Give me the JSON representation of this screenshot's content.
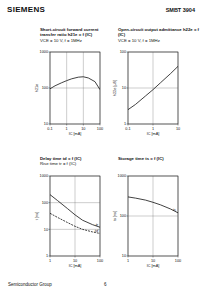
{
  "page": {
    "brand": "SIEMENS",
    "part": "SMBT 3904",
    "footer": "Semiconductor Group",
    "page_number": "6"
  },
  "chart_data": [
    {
      "type": "line",
      "log": true,
      "grid": true,
      "title": "Short-circuit forward current transfer ratio h21e = f (IC)",
      "subtitle": "VCE = 10 V, f = 1MHz",
      "x_label": "IC [mA]",
      "y_label": "h21e",
      "x": [
        0.1,
        0.2,
        0.5,
        1,
        2,
        5,
        10,
        20,
        50,
        100
      ],
      "xlim": [
        0.1,
        100
      ],
      "ylim": [
        10,
        1000
      ],
      "xticks": [
        0.1,
        1,
        10,
        100
      ],
      "yticks": [
        10,
        100,
        1000
      ],
      "series": [
        {
          "color": "#111111",
          "values": [
            95,
            115,
            140,
            160,
            180,
            200,
            205,
            190,
            150,
            90
          ]
        }
      ]
    },
    {
      "type": "line",
      "log": true,
      "grid": true,
      "title": "Open-circuit output admittance h22e = f (IC)",
      "subtitle": "VCE = 10 V, f = 1MHz",
      "x_label": "IC [mA]",
      "y_label": "h22e [µS]",
      "x": [
        0.1,
        0.2,
        0.5,
        1,
        2,
        5,
        10
      ],
      "xlim": [
        0.1,
        10
      ],
      "ylim": [
        1,
        100
      ],
      "xticks": [
        0.1,
        1,
        10
      ],
      "yticks": [
        1,
        10,
        100
      ],
      "series": [
        {
          "color": "#111111",
          "values": [
            2.5,
            3.5,
            6,
            9,
            14,
            25,
            40
          ]
        }
      ]
    },
    {
      "type": "line",
      "log": true,
      "grid": true,
      "title": "Delay time td = f (IC)",
      "subtitle": "Rise time tr = f (IC)",
      "x_label": "IC [mA]",
      "y_label": "t [ns]",
      "x": [
        1,
        2,
        5,
        10,
        20,
        50,
        100
      ],
      "xlim": [
        1,
        100
      ],
      "ylim": [
        1,
        1000
      ],
      "xticks": [
        1,
        10,
        100
      ],
      "yticks": [
        1,
        10,
        100,
        1000
      ],
      "series": [
        {
          "name": "tr",
          "color": "#111111",
          "values": [
            200,
            120,
            60,
            35,
            22,
            15,
            12
          ]
        },
        {
          "name": "td",
          "color": "#111111",
          "line_style": "dashed",
          "values": [
            40,
            28,
            18,
            13,
            10,
            8,
            7
          ]
        }
      ]
    },
    {
      "type": "line",
      "log": true,
      "grid": true,
      "title": "Storage time ts = f (IC)",
      "x_label": "IC [mA]",
      "y_label": "ts [ns]",
      "x": [
        1,
        2,
        5,
        10,
        20,
        50,
        100
      ],
      "xlim": [
        1,
        100
      ],
      "ylim": [
        10,
        1000
      ],
      "xticks": [
        1,
        10,
        100
      ],
      "yticks": [
        10,
        100,
        1000
      ],
      "series": [
        {
          "name": "ts",
          "color": "#111111",
          "values": [
            300,
            280,
            250,
            220,
            190,
            150,
            120
          ]
        }
      ]
    }
  ]
}
